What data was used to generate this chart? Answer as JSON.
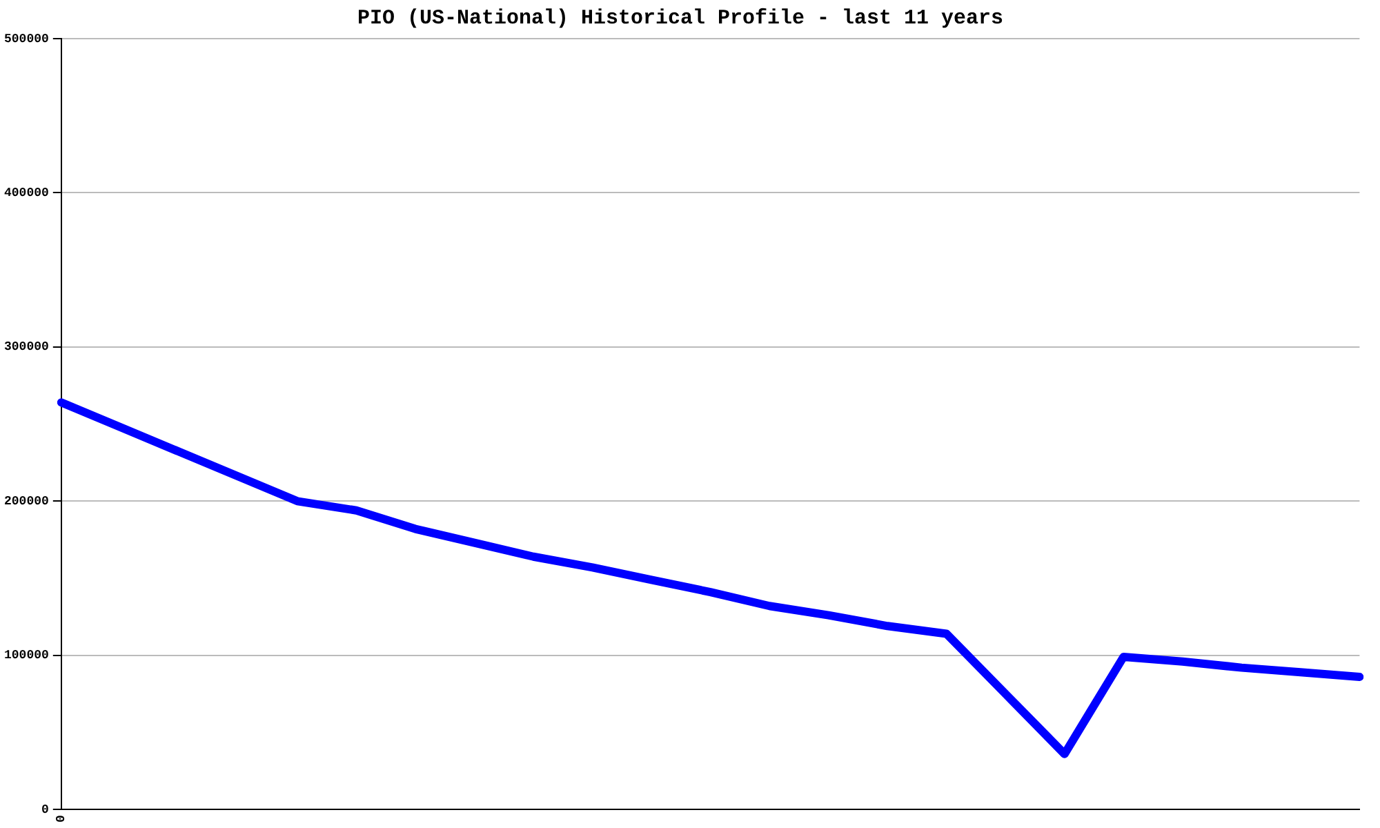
{
  "chart_data": {
    "type": "line",
    "title": "PIO (US-National) Historical Profile - last 11 years",
    "categories": [
      "0",
      null,
      null,
      null,
      null,
      null,
      null,
      null,
      null,
      null,
      null,
      null,
      null,
      null,
      null,
      null,
      null,
      null,
      null,
      null,
      null,
      null,
      null
    ],
    "series": [
      {
        "color": "#0000ff",
        "values": [
          264000,
          248000,
          232000,
          216000,
          200000,
          194000,
          182000,
          173000,
          164000,
          157000,
          149000,
          141000,
          132000,
          126000,
          119000,
          114000,
          75000,
          36000,
          99000,
          96000,
          92000,
          89000,
          86000
        ]
      }
    ],
    "ylim": [
      0,
      500000
    ],
    "yticks": [
      0,
      100000,
      200000,
      300000,
      400000,
      500000
    ],
    "grid": "y",
    "legend": false,
    "marker": "none",
    "line_style": "solid"
  }
}
